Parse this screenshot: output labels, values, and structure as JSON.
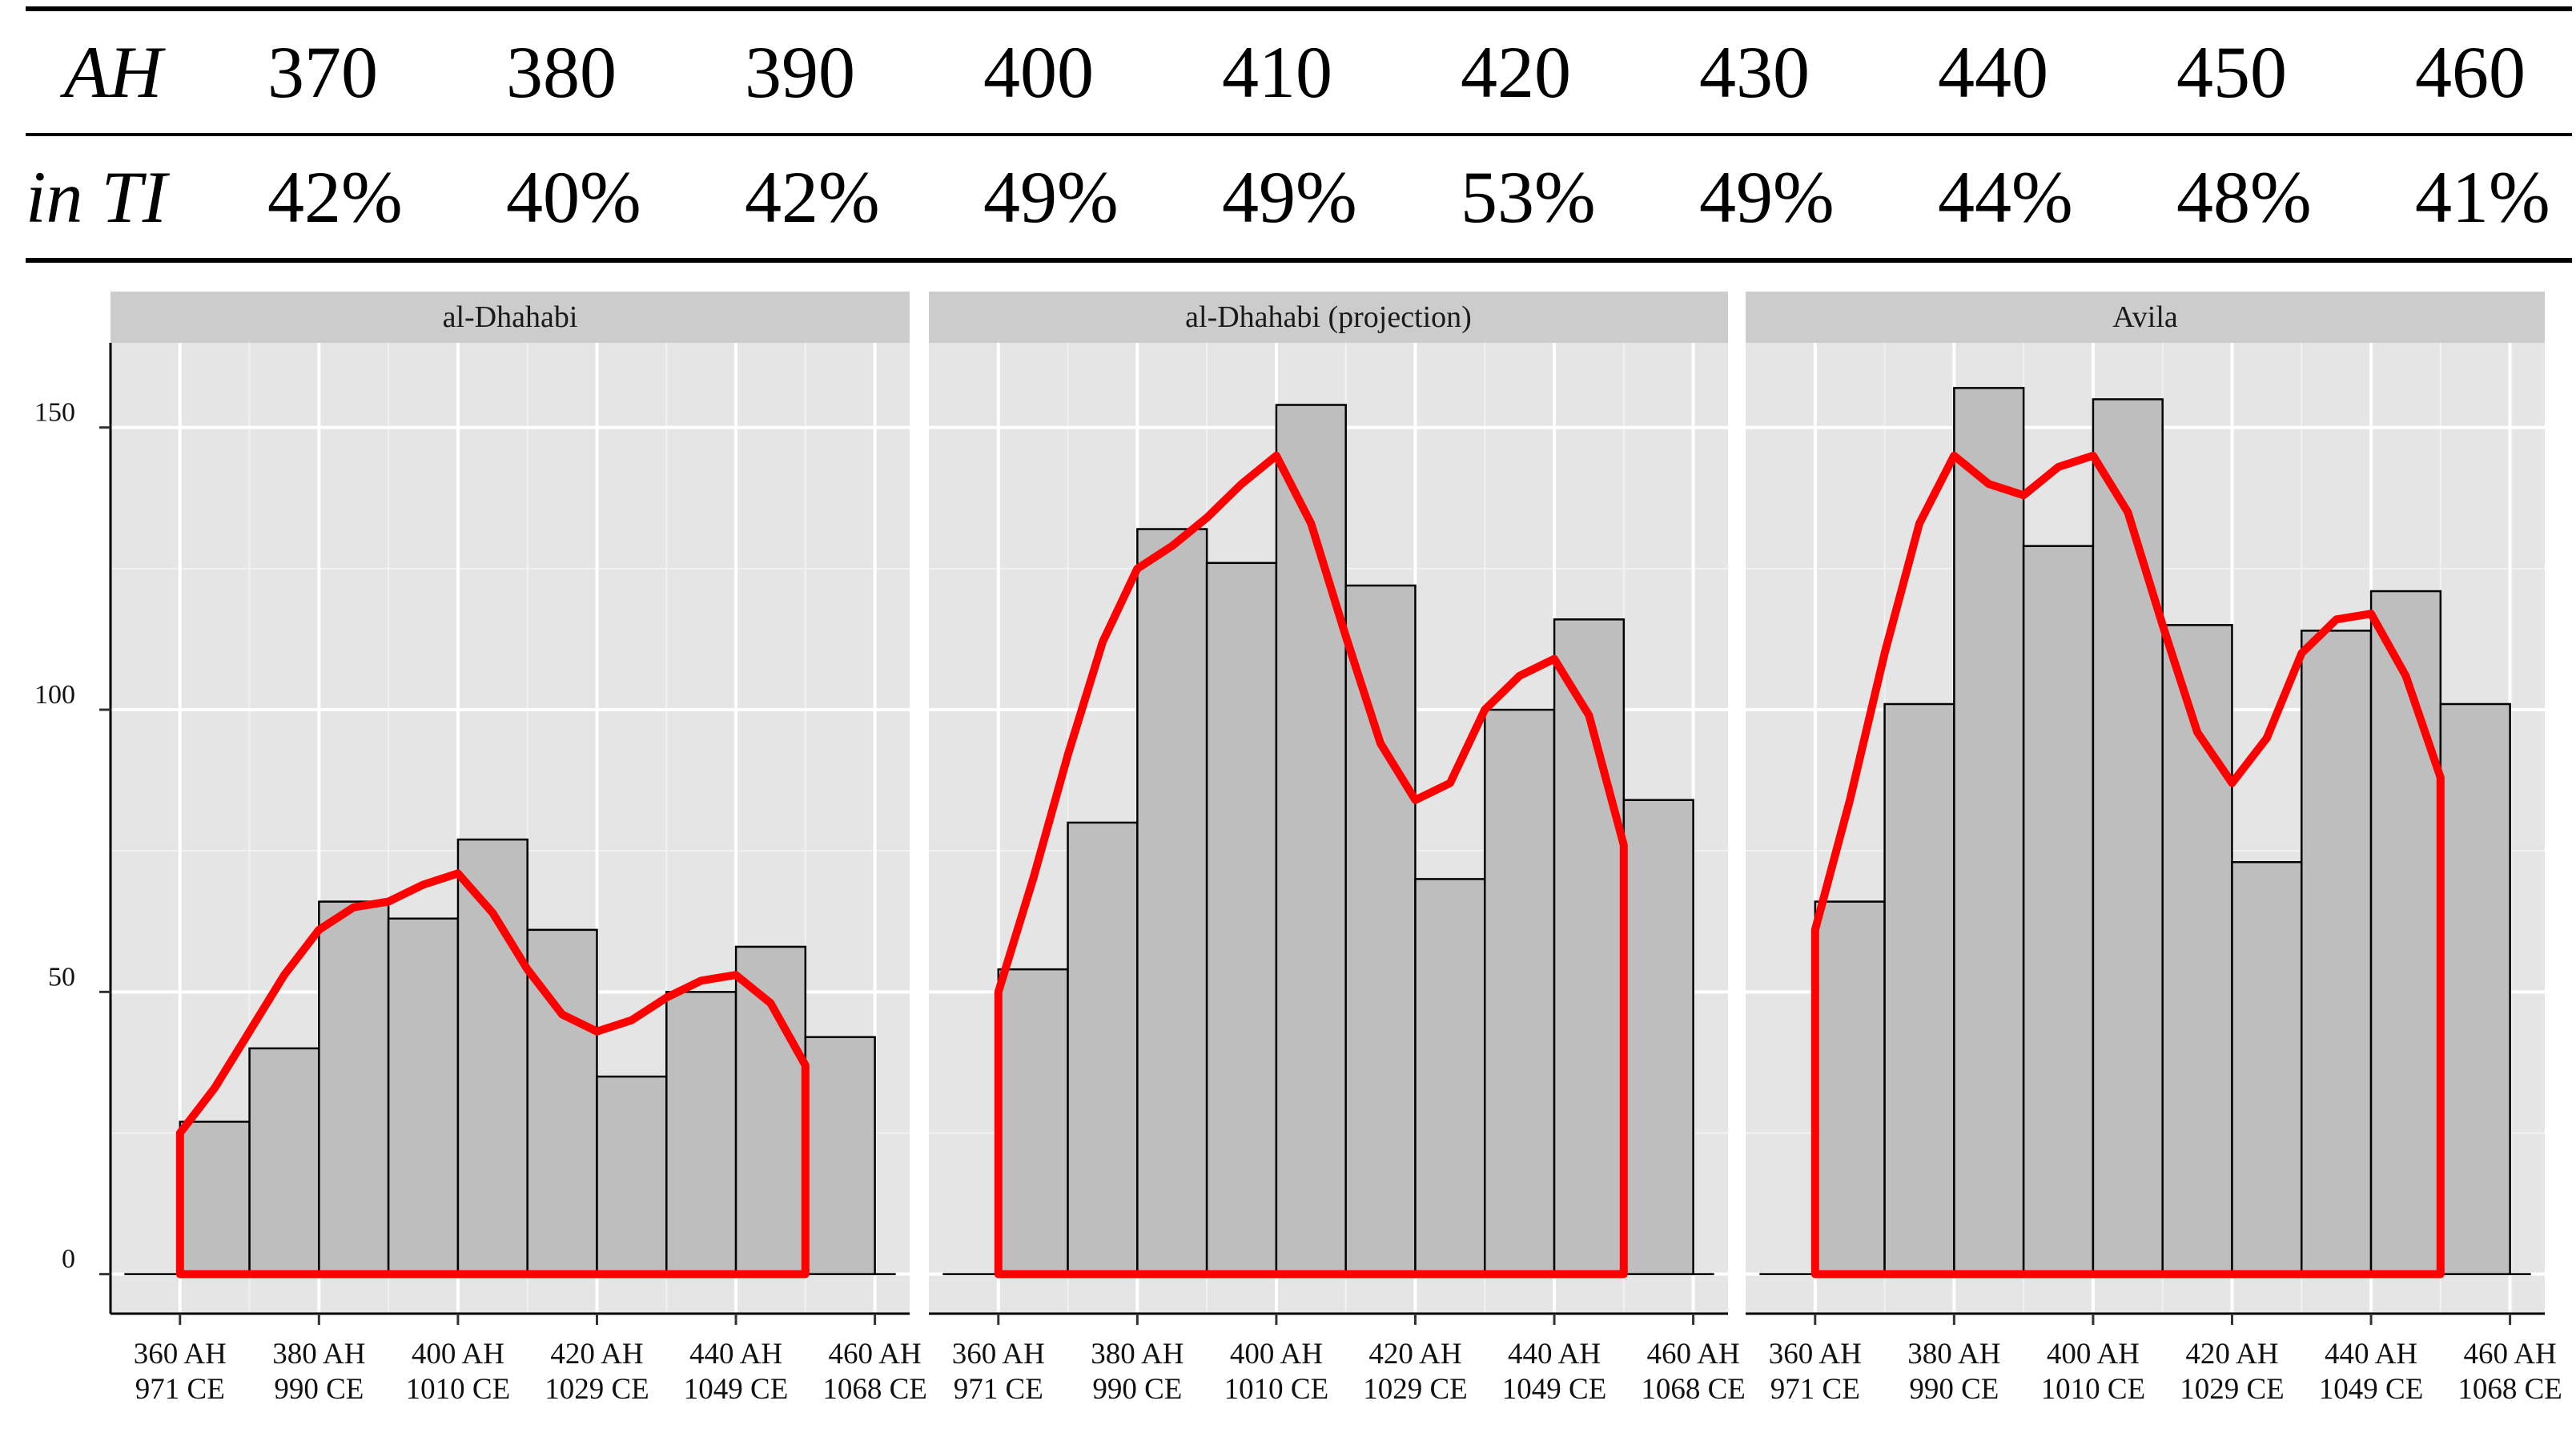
{
  "table": {
    "rows": [
      {
        "label": "AH",
        "values": [
          "370",
          "380",
          "390",
          "400",
          "410",
          "420",
          "430",
          "440",
          "450",
          "460"
        ]
      },
      {
        "label": "in TI",
        "values": [
          "42%",
          "40%",
          "42%",
          "49%",
          "49%",
          "53%",
          "49%",
          "44%",
          "48%",
          "41%"
        ]
      }
    ]
  },
  "colors": {
    "panel_bg": "#e5e5e5",
    "strip_bg": "#cccccc",
    "bar_fill": "#bebebe",
    "bar_stroke": "#000000",
    "curve": "#ff0000",
    "grid": "#ffffff"
  },
  "chart_data": {
    "type": "bar",
    "y_ticks": [
      0,
      50,
      100,
      150
    ],
    "ylim": [
      -7,
      165
    ],
    "xlim": [
      350,
      465
    ],
    "x_ticks": [
      {
        "ah": "360 AH",
        "ce": "971 CE",
        "x": 360
      },
      {
        "ah": "380 AH",
        "ce": "990 CE",
        "x": 380
      },
      {
        "ah": "400 AH",
        "ce": "1010 CE",
        "x": 400
      },
      {
        "ah": "420 AH",
        "ce": "1029 CE",
        "x": 420
      },
      {
        "ah": "440 AH",
        "ce": "1049 CE",
        "x": 440
      },
      {
        "ah": "460 AH",
        "ce": "1068 CE",
        "x": 460
      }
    ],
    "bin_starts": [
      360,
      370,
      380,
      390,
      400,
      410,
      420,
      430,
      440,
      450
    ],
    "bin_width": 10,
    "panels": [
      {
        "title": "al-Dhahabi",
        "values": [
          27,
          40,
          66,
          63,
          77,
          61,
          35,
          50,
          58,
          42
        ],
        "curve": [
          [
            360,
            25
          ],
          [
            365,
            33
          ],
          [
            370,
            43
          ],
          [
            375,
            53
          ],
          [
            380,
            61
          ],
          [
            385,
            65
          ],
          [
            390,
            66
          ],
          [
            395,
            69
          ],
          [
            400,
            71
          ],
          [
            405,
            64
          ],
          [
            410,
            54
          ],
          [
            415,
            46
          ],
          [
            420,
            43
          ],
          [
            425,
            45
          ],
          [
            430,
            49
          ],
          [
            435,
            52
          ],
          [
            440,
            53
          ],
          [
            445,
            48
          ],
          [
            450,
            37
          ],
          [
            450,
            0
          ],
          [
            360,
            0
          ]
        ]
      },
      {
        "title": "al-Dhahabi (projection)",
        "values": [
          54,
          80,
          132,
          126,
          154,
          122,
          70,
          100,
          116,
          84
        ],
        "curve": [
          [
            360,
            50
          ],
          [
            365,
            70
          ],
          [
            370,
            92
          ],
          [
            375,
            112
          ],
          [
            380,
            125
          ],
          [
            385,
            129
          ],
          [
            390,
            134
          ],
          [
            395,
            140
          ],
          [
            400,
            145
          ],
          [
            405,
            133
          ],
          [
            410,
            113
          ],
          [
            415,
            94
          ],
          [
            420,
            84
          ],
          [
            425,
            87
          ],
          [
            430,
            100
          ],
          [
            435,
            106
          ],
          [
            440,
            109
          ],
          [
            445,
            99
          ],
          [
            450,
            76
          ],
          [
            450,
            0
          ],
          [
            360,
            0
          ]
        ]
      },
      {
        "title": "Avila",
        "values": [
          66,
          101,
          157,
          129,
          155,
          115,
          73,
          114,
          121,
          101
        ],
        "curve": [
          [
            360,
            61
          ],
          [
            365,
            84
          ],
          [
            370,
            110
          ],
          [
            375,
            133
          ],
          [
            380,
            145
          ],
          [
            385,
            140
          ],
          [
            390,
            138
          ],
          [
            395,
            143
          ],
          [
            400,
            145
          ],
          [
            405,
            135
          ],
          [
            410,
            115
          ],
          [
            415,
            96
          ],
          [
            420,
            87
          ],
          [
            425,
            95
          ],
          [
            430,
            110
          ],
          [
            435,
            116
          ],
          [
            440,
            117
          ],
          [
            445,
            106
          ],
          [
            450,
            88
          ],
          [
            450,
            0
          ],
          [
            360,
            0
          ]
        ]
      }
    ]
  }
}
